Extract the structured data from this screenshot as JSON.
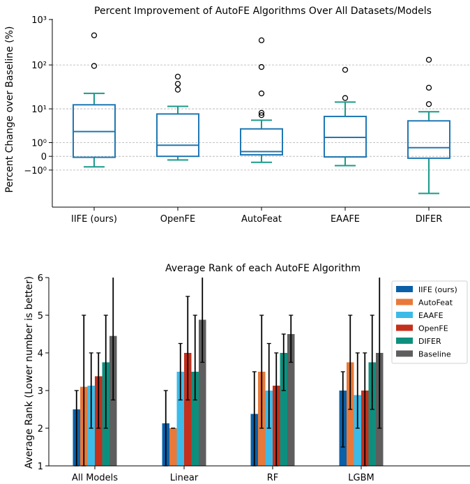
{
  "chart_data": [
    {
      "type": "box",
      "title": "Percent Improvement of AutoFE Algorithms Over All Datasets/Models",
      "ylabel": "Percent Change over Baseline (%)",
      "yscale": "symlog",
      "ytick_labels": [
        "10³",
        "10²",
        "10¹",
        "10⁰",
        "0",
        "−10⁰"
      ],
      "ytick_values": [
        1000,
        100,
        10,
        1,
        0,
        -1
      ],
      "grid": "horizontal dashed",
      "categories": [
        "IIFE (ours)",
        "OpenFE",
        "AutoFeat",
        "EAAFE",
        "DIFER"
      ],
      "boxes": [
        {
          "whisker_low": -0.7,
          "q1": -0.05,
          "median": 2.5,
          "q3": 12.5,
          "whisker_high": 23,
          "outliers": [
            450,
            95
          ]
        },
        {
          "whisker_low": -0.2,
          "q1": 0.0,
          "median": 0.75,
          "q3": 7.5,
          "whisker_high": 11.5,
          "outliers": [
            55,
            38,
            28
          ]
        },
        {
          "whisker_low": -0.35,
          "q1": 0.08,
          "median": 0.27,
          "q3": 3.0,
          "whisker_high": 5.2,
          "outliers": [
            350,
            90,
            23,
            8,
            7
          ]
        },
        {
          "whisker_low": -0.6,
          "q1": -0.03,
          "median": 1.6,
          "q3": 6.5,
          "whisker_high": 14.5,
          "outliers": [
            78,
            18
          ]
        },
        {
          "whisker_low": -5.5,
          "q1": -0.1,
          "median": 0.55,
          "q3": 5.0,
          "whisker_high": 8.5,
          "outliers": [
            130,
            31,
            13
          ]
        }
      ],
      "colors": {
        "box": "#1f77b4",
        "whisker": "#1a9a8a",
        "grid": "#b0b0b0"
      }
    },
    {
      "type": "bar",
      "title": "Average Rank of each AutoFE Algorithm",
      "ylabel": "Average Rank (Lower number is better)",
      "ylim": [
        1,
        6
      ],
      "yticks": [
        1,
        2,
        3,
        4,
        5,
        6
      ],
      "categories": [
        "All Models",
        "Linear",
        "RF",
        "LGBM"
      ],
      "legend_position": "top-right",
      "series": [
        {
          "name": "IIFE (ours)",
          "color": "#0b60a8",
          "values": [
            2.5,
            2.13,
            2.38,
            3.0
          ],
          "err_low": [
            1.0,
            1.0,
            1.0,
            1.5
          ],
          "err_high": [
            3.0,
            3.0,
            3.5,
            3.5
          ]
        },
        {
          "name": "AutoFeat",
          "color": "#e8793a",
          "values": [
            3.1,
            2.0,
            3.5,
            3.75
          ],
          "err_low": [
            1.0,
            2.0,
            2.0,
            2.5
          ],
          "err_high": [
            5.0,
            2.0,
            5.0,
            5.0
          ]
        },
        {
          "name": "EAAFE",
          "color": "#3cbbe8",
          "values": [
            3.13,
            3.5,
            3.0,
            2.88
          ],
          "err_low": [
            2.0,
            2.75,
            2.0,
            2.0
          ],
          "err_high": [
            4.0,
            4.25,
            4.25,
            4.0
          ]
        },
        {
          "name": "OpenFE",
          "color": "#c4301c",
          "values": [
            3.38,
            4.0,
            3.13,
            3.0
          ],
          "err_low": [
            2.0,
            2.75,
            1.0,
            1.0
          ],
          "err_high": [
            4.0,
            5.5,
            4.0,
            4.0
          ]
        },
        {
          "name": "DIFER",
          "color": "#0e8f7e",
          "values": [
            3.75,
            3.5,
            4.0,
            3.75
          ],
          "err_low": [
            2.0,
            2.75,
            3.0,
            2.5
          ],
          "err_high": [
            5.0,
            5.0,
            4.5,
            5.0
          ]
        },
        {
          "name": "Baseline",
          "color": "#5e5e5e",
          "values": [
            4.45,
            4.88,
            4.5,
            4.0
          ],
          "err_low": [
            2.75,
            3.75,
            3.75,
            2.0
          ],
          "err_high": [
            6.0,
            6.0,
            5.0,
            6.0
          ]
        }
      ]
    }
  ]
}
